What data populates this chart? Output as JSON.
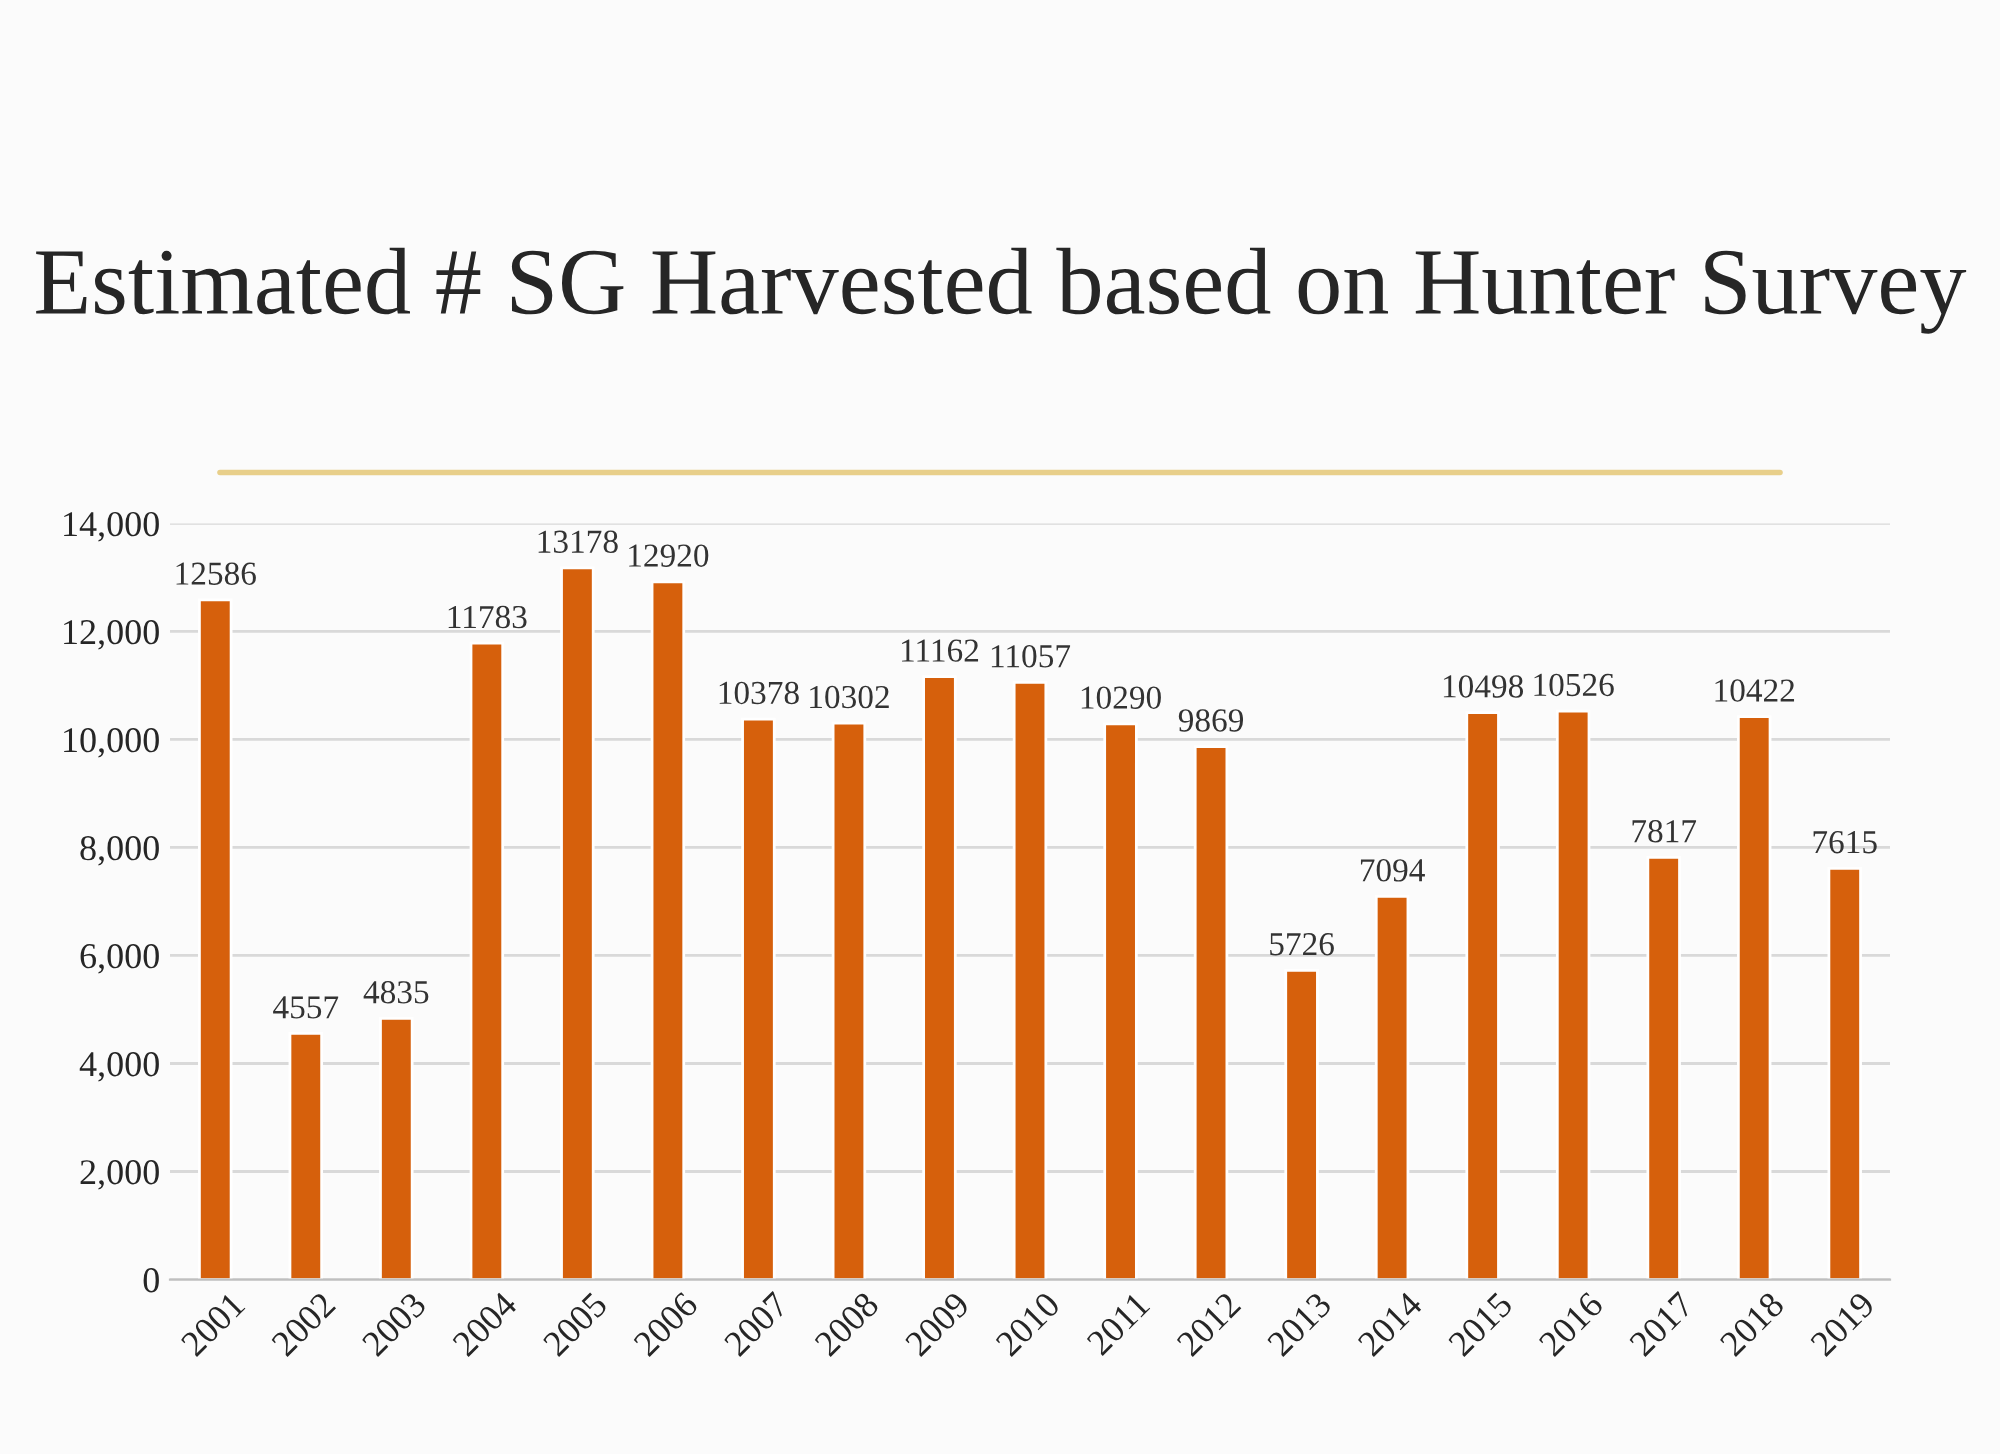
{
  "chart_data": {
    "type": "bar",
    "title": "Estimated # SG Harvested based on Hunter Survey",
    "categories": [
      "2001",
      "2002",
      "2003",
      "2004",
      "2005",
      "2006",
      "2007",
      "2008",
      "2009",
      "2010",
      "2011",
      "2012",
      "2013",
      "2014",
      "2015",
      "2016",
      "2017",
      "2018",
      "2019"
    ],
    "values": [
      12586,
      4557,
      4835,
      11783,
      13178,
      12920,
      10378,
      10302,
      11162,
      11057,
      10290,
      9869,
      5726,
      7094,
      10498,
      10526,
      7817,
      10422,
      7615
    ],
    "color": "#d6600c",
    "ylim": [
      0,
      14000
    ],
    "yticks": [
      0,
      {
        "value": 2000,
        "label": "2,000"
      },
      {
        "value": 4000,
        "label": "4,000"
      },
      {
        "value": 6000,
        "label": "6,000"
      },
      {
        "value": 8000,
        "label": "8,000"
      },
      {
        "value": 10000,
        "label": "10,000"
      },
      {
        "value": 12000,
        "label": "12,000"
      },
      {
        "value": 14000,
        "label": "14,000"
      }
    ],
    "grid": "y",
    "data_labels": true
  }
}
